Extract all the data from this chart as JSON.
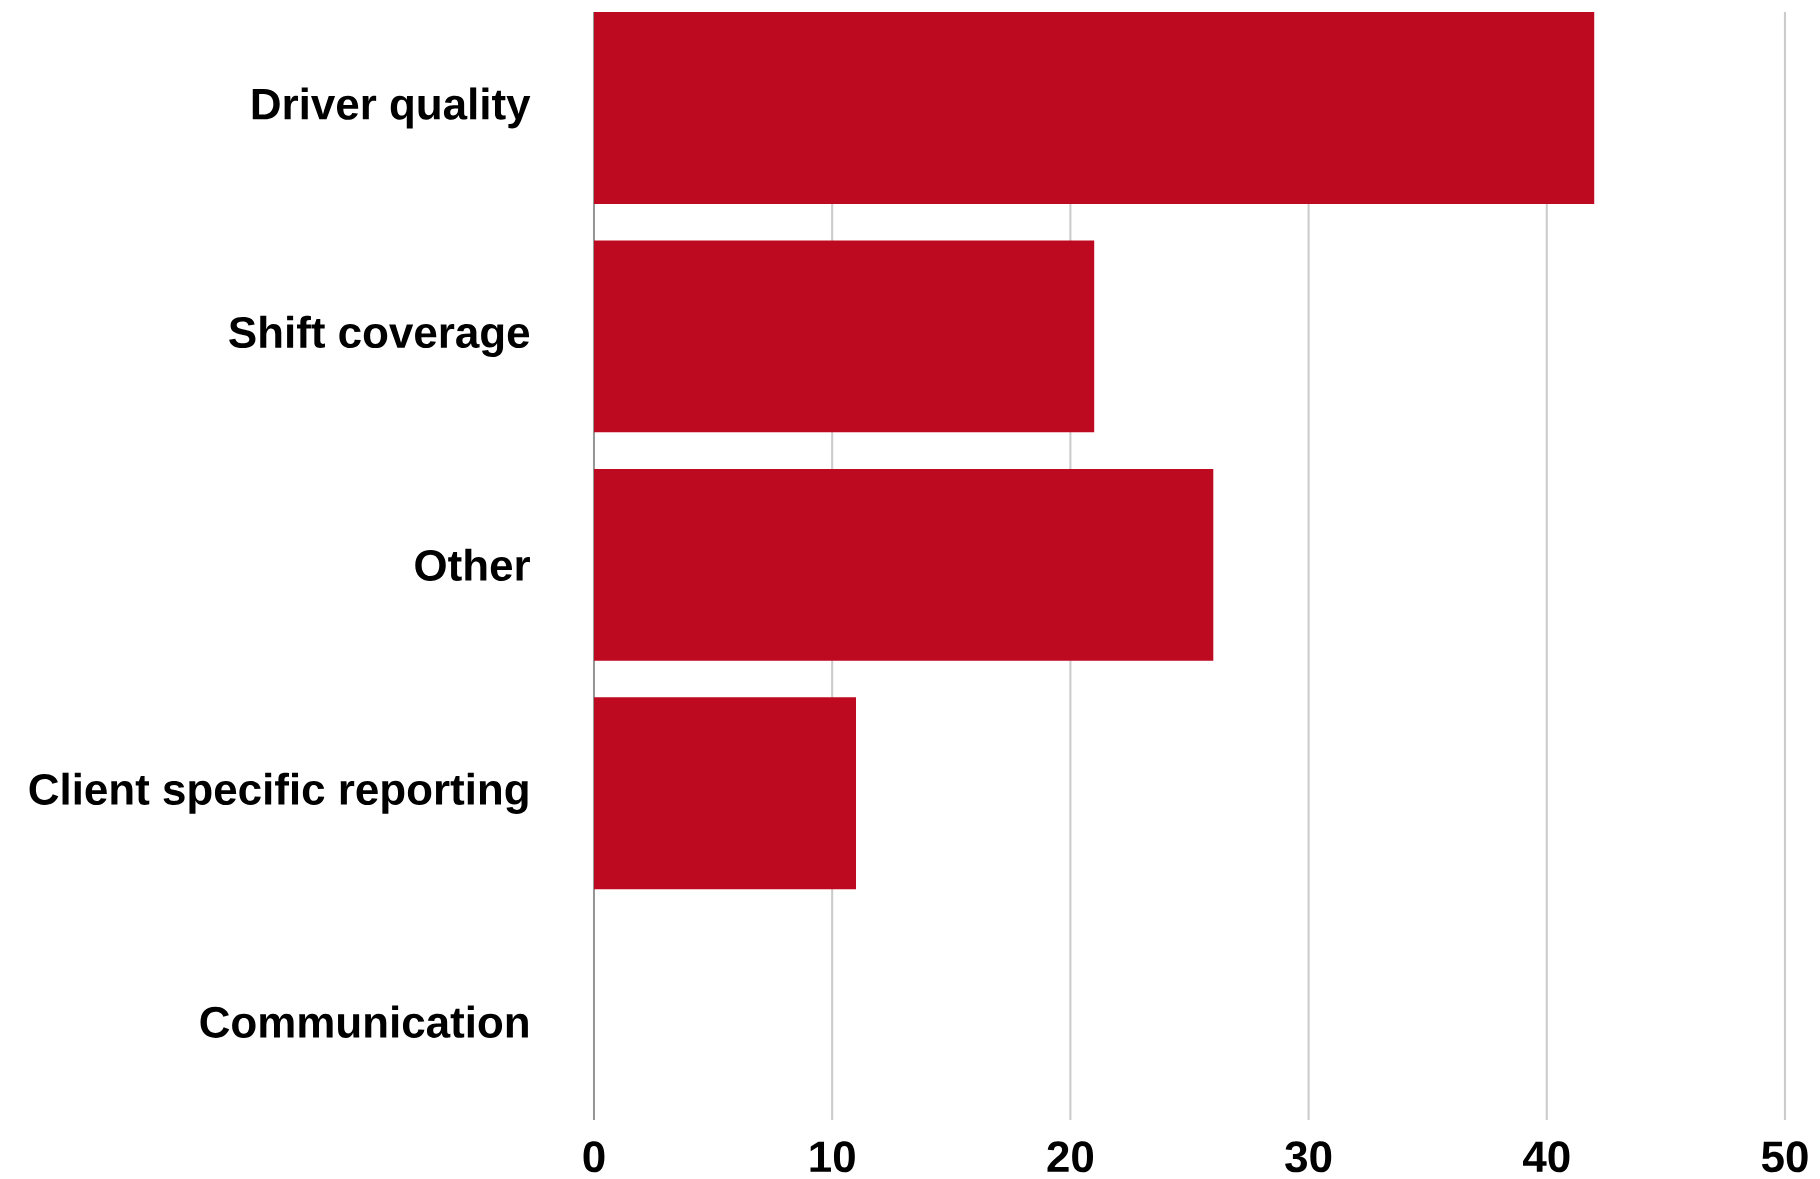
{
  "chart_data": {
    "type": "bar",
    "orientation": "horizontal",
    "categories": [
      "Driver quality",
      "Shift coverage",
      "Other",
      "Client specific reporting",
      "Communication"
    ],
    "values": [
      42,
      21,
      26,
      11,
      0
    ],
    "color": "#be0a20",
    "xlim": [
      0,
      50
    ],
    "xticks": [
      0,
      10,
      20,
      30,
      40,
      50
    ],
    "grid": "x"
  }
}
